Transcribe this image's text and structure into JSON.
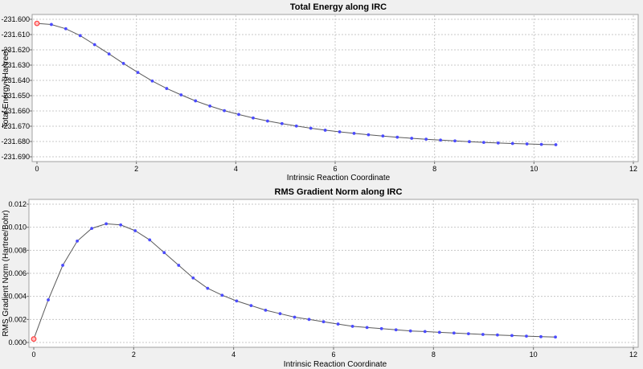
{
  "chart_data": [
    {
      "type": "line",
      "title": "Total Energy along IRC",
      "xlabel": "Intrinsic Reaction Coordinate",
      "ylabel": "Total Energy (Hartree)",
      "xlim": [
        0,
        12
      ],
      "ylim": [
        -231.69,
        -231.6
      ],
      "xticks": [
        0,
        2,
        4,
        6,
        8,
        10,
        12
      ],
      "yticks": [
        -231.6,
        -231.61,
        -231.62,
        -231.63,
        -231.64,
        -231.65,
        -231.66,
        -231.67,
        -231.68,
        -231.69
      ],
      "ytick_labels": [
        "-231.600",
        "-231.610",
        "-231.620",
        "-231.630",
        "-231.640",
        "-231.650",
        "-231.660",
        "-231.670",
        "-231.680",
        "-231.690"
      ],
      "grid": true,
      "line_color": "#5a5a5a",
      "marker_color": "#4b4bff",
      "highlight_color": "#ff4040",
      "highlight_index": 0,
      "x": [
        0.0,
        0.29,
        0.58,
        0.87,
        1.16,
        1.45,
        1.74,
        2.03,
        2.32,
        2.61,
        2.9,
        3.19,
        3.48,
        3.77,
        4.06,
        4.35,
        4.64,
        4.93,
        5.22,
        5.51,
        5.8,
        6.09,
        6.38,
        6.67,
        6.96,
        7.25,
        7.54,
        7.83,
        8.12,
        8.41,
        8.7,
        8.99,
        9.28,
        9.57,
        9.86,
        10.15,
        10.44
      ],
      "y": [
        -231.6027,
        -231.6034,
        -231.6062,
        -231.6107,
        -231.6166,
        -231.6227,
        -231.6289,
        -231.6348,
        -231.6404,
        -231.6453,
        -231.6495,
        -231.6534,
        -231.6568,
        -231.6598,
        -231.6623,
        -231.6646,
        -231.6666,
        -231.6683,
        -231.6699,
        -231.6713,
        -231.6726,
        -231.6737,
        -231.6747,
        -231.6756,
        -231.6764,
        -231.6772,
        -231.6779,
        -231.6785,
        -231.6791,
        -231.6796,
        -231.6801,
        -231.6806,
        -231.681,
        -231.6813,
        -231.6816,
        -231.6819,
        -231.6821
      ]
    },
    {
      "type": "line",
      "title": "RMS Gradient Norm along IRC",
      "xlabel": "Intrinsic Reaction Coordinate",
      "ylabel": "RMS Gradient Norm (Hartree/Bohr)",
      "xlim": [
        0,
        12
      ],
      "ylim": [
        0,
        0.012
      ],
      "xticks": [
        0,
        2,
        4,
        6,
        8,
        10,
        12
      ],
      "yticks": [
        0,
        0.002,
        0.004,
        0.006,
        0.008,
        0.01,
        0.012
      ],
      "ytick_labels": [
        "0.000",
        "0.002",
        "0.004",
        "0.006",
        "0.008",
        "0.010",
        "0.012"
      ],
      "grid": true,
      "line_color": "#5a5a5a",
      "marker_color": "#4b4bff",
      "highlight_color": "#ff4040",
      "highlight_index": 0,
      "x": [
        0.0,
        0.29,
        0.58,
        0.87,
        1.16,
        1.45,
        1.74,
        2.03,
        2.32,
        2.61,
        2.9,
        3.19,
        3.48,
        3.77,
        4.06,
        4.35,
        4.64,
        4.93,
        5.22,
        5.51,
        5.8,
        6.09,
        6.38,
        6.67,
        6.96,
        7.25,
        7.54,
        7.83,
        8.12,
        8.41,
        8.7,
        8.99,
        9.28,
        9.57,
        9.86,
        10.15,
        10.44
      ],
      "y": [
        0.0003,
        0.0037,
        0.0067,
        0.0088,
        0.0099,
        0.0103,
        0.0102,
        0.0097,
        0.0089,
        0.0078,
        0.0067,
        0.0056,
        0.0047,
        0.0041,
        0.0036,
        0.0032,
        0.0028,
        0.0025,
        0.0022,
        0.002,
        0.0018,
        0.0016,
        0.0014,
        0.0013,
        0.0012,
        0.0011,
        0.001,
        0.00095,
        0.00088,
        0.00082,
        0.00076,
        0.0007,
        0.00065,
        0.0006,
        0.00055,
        0.0005,
        0.00047
      ]
    }
  ]
}
